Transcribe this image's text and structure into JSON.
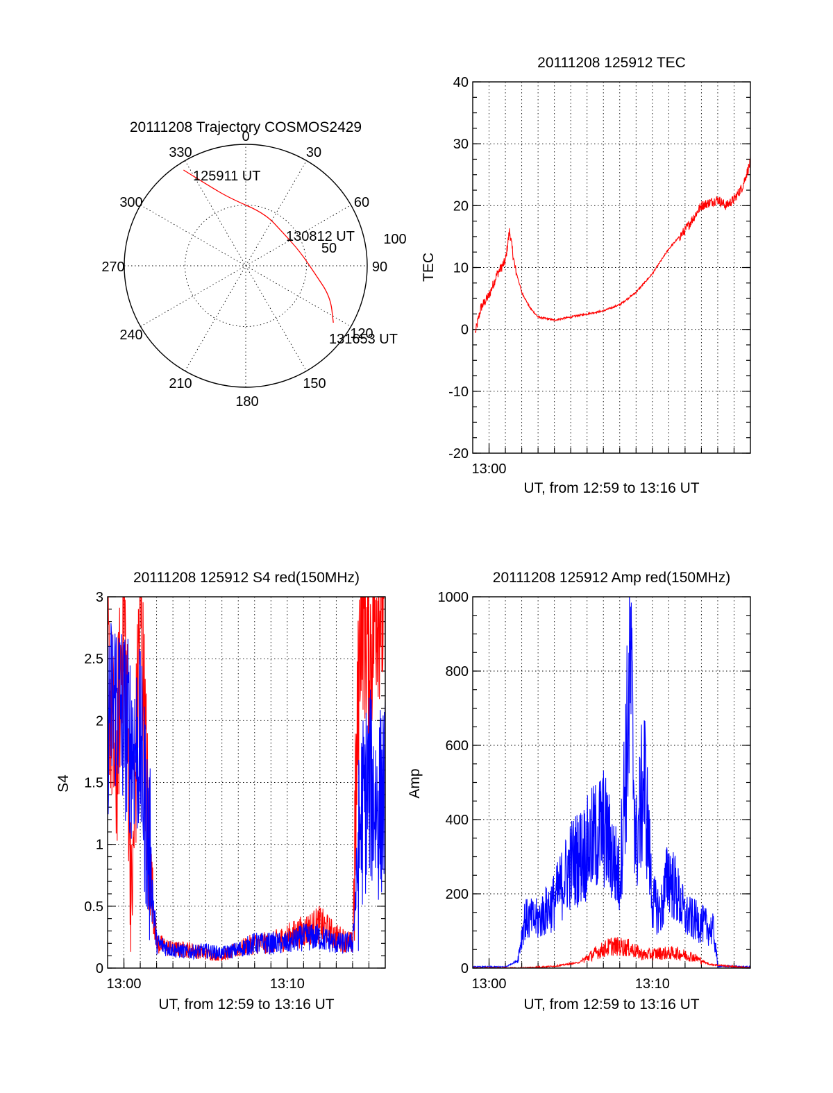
{
  "chart_data": [
    {
      "type": "polar",
      "title": "20111208 Trajectory COSMOS2429",
      "azimuth_labels": [
        "0",
        "30",
        "60",
        "90",
        "120",
        "150",
        "180",
        "210",
        "240",
        "270",
        "300",
        "330"
      ],
      "radius_labels": [
        "50",
        "100"
      ],
      "rlim": [
        0,
        100
      ],
      "grid": true,
      "series": [
        {
          "color": "#ff0000",
          "points": [
            {
              "az": 327,
              "r": 94
            },
            {
              "az": 335,
              "r": 73
            },
            {
              "az": 347,
              "r": 57
            },
            {
              "az": 20,
              "r": 46
            },
            {
              "az": 50,
              "r": 41
            },
            {
              "az": 75,
              "r": 46
            },
            {
              "az": 96,
              "r": 57
            },
            {
              "az": 110,
              "r": 74
            },
            {
              "az": 123,
              "r": 86
            }
          ]
        }
      ],
      "annotations": [
        "125911 UT",
        "130812 UT",
        "131653 UT"
      ]
    },
    {
      "type": "line",
      "title": "20111208 125912 TEC",
      "xlabel": "UT, from 12:59 to 13:16 UT",
      "ylabel": "TEC",
      "xlim": [
        "12:59",
        "13:16"
      ],
      "xticks": [
        "13:00"
      ],
      "ylim": [
        -20,
        40
      ],
      "yticks": [
        "-20",
        "-10",
        "0",
        "10",
        "20",
        "30",
        "40"
      ],
      "grid": true,
      "series": [
        {
          "color": "#ff0000",
          "x": [
            "12:59:10",
            "12:59:30",
            "13:00:00",
            "13:00:30",
            "13:01:00",
            "13:01:15",
            "13:01:35",
            "13:02:00",
            "13:02:30",
            "13:03:00",
            "13:04:00",
            "13:05:00",
            "13:06:00",
            "13:07:00",
            "13:08:00",
            "13:09:00",
            "13:10:00",
            "13:11:00",
            "13:12:00",
            "13:13:00",
            "13:14:00",
            "13:14:30",
            "13:15:00",
            "13:15:30",
            "13:16:00"
          ],
          "values": [
            -0.5,
            3.5,
            5.5,
            9,
            11,
            16,
            10,
            6,
            3.5,
            2,
            1.5,
            2,
            2.5,
            3,
            4,
            6,
            9,
            13,
            16,
            20,
            21,
            20,
            21,
            23,
            27
          ]
        }
      ]
    },
    {
      "type": "line",
      "title": "20111208 125912 S4 red(150MHz)",
      "xlabel": "UT, from 12:59 to 13:16 UT",
      "ylabel": "S4",
      "xlim": [
        "12:59",
        "13:16"
      ],
      "xticks": [
        "13:00",
        "13:10"
      ],
      "ylim": [
        0,
        3
      ],
      "yticks": [
        "0",
        "0.5",
        "1",
        "1.5",
        "2",
        "2.5",
        "3"
      ],
      "grid": true,
      "series": [
        {
          "color": "#ff0000",
          "x": [
            "12:59:00",
            "12:59:30",
            "13:00:00",
            "13:00:30",
            "13:01:00",
            "13:01:30",
            "13:02:00",
            "13:03:00",
            "13:04:00",
            "13:05:00",
            "13:06:00",
            "13:07:00",
            "13:08:00",
            "13:09:00",
            "13:10:00",
            "13:11:00",
            "13:12:00",
            "13:13:00",
            "13:14:00",
            "13:14:30",
            "13:15:00",
            "13:15:30",
            "13:16:00"
          ],
          "values": [
            2.5,
            1.5,
            3,
            0.5,
            3,
            1.0,
            0.2,
            0.15,
            0.15,
            0.12,
            0.1,
            0.15,
            0.2,
            0.2,
            0.25,
            0.3,
            0.35,
            0.25,
            0.2,
            3,
            2.5,
            3,
            2.8
          ]
        },
        {
          "color": "#0000ff",
          "x": [
            "12:59:00",
            "12:59:30",
            "13:00:00",
            "13:00:30",
            "13:01:00",
            "13:01:30",
            "13:02:00",
            "13:03:00",
            "13:04:00",
            "13:05:00",
            "13:06:00",
            "13:07:00",
            "13:08:00",
            "13:09:00",
            "13:10:00",
            "13:11:00",
            "13:12:00",
            "13:13:00",
            "13:14:00",
            "13:14:30",
            "13:15:00",
            "13:15:30",
            "13:16:00"
          ],
          "values": [
            2.0,
            2.2,
            2.0,
            1.8,
            1.8,
            1.0,
            0.2,
            0.15,
            0.13,
            0.14,
            0.12,
            0.15,
            0.2,
            0.2,
            0.2,
            0.25,
            0.25,
            0.2,
            0.2,
            1.2,
            1.5,
            1.3,
            1.4
          ]
        }
      ]
    },
    {
      "type": "line",
      "title": "20111208 125912 Amp red(150MHz)",
      "xlabel": "UT, from 12:59 to 13:16 UT",
      "ylabel": "Amp",
      "xlim": [
        "12:59",
        "13:16"
      ],
      "xticks": [
        "13:00",
        "13:10"
      ],
      "ylim": [
        0,
        1000
      ],
      "yticks": [
        "0",
        "200",
        "400",
        "600",
        "800",
        "1000"
      ],
      "grid": true,
      "series": [
        {
          "color": "#0000ff",
          "x": [
            "12:59:00",
            "13:01:00",
            "13:01:45",
            "13:02:10",
            "13:03:00",
            "13:04:00",
            "13:05:00",
            "13:06:00",
            "13:07:00",
            "13:08:00",
            "13:08:40",
            "13:09:00",
            "13:09:30",
            "13:10:00",
            "13:10:30",
            "13:11:00",
            "13:12:00",
            "13:13:00",
            "13:13:45",
            "13:14:00",
            "13:16:00"
          ],
          "values": [
            3,
            3,
            20,
            130,
            130,
            180,
            280,
            320,
            380,
            240,
            800,
            320,
            520,
            180,
            150,
            260,
            140,
            120,
            100,
            5,
            3
          ]
        },
        {
          "color": "#ff0000",
          "x": [
            "12:59:00",
            "13:02:00",
            "13:04:00",
            "13:05:30",
            "13:06:30",
            "13:07:30",
            "13:08:30",
            "13:09:30",
            "13:10:30",
            "13:11:30",
            "13:12:30",
            "13:13:30",
            "13:16:00"
          ],
          "values": [
            0,
            0,
            5,
            15,
            40,
            60,
            55,
            35,
            40,
            40,
            30,
            10,
            0
          ]
        }
      ]
    }
  ]
}
